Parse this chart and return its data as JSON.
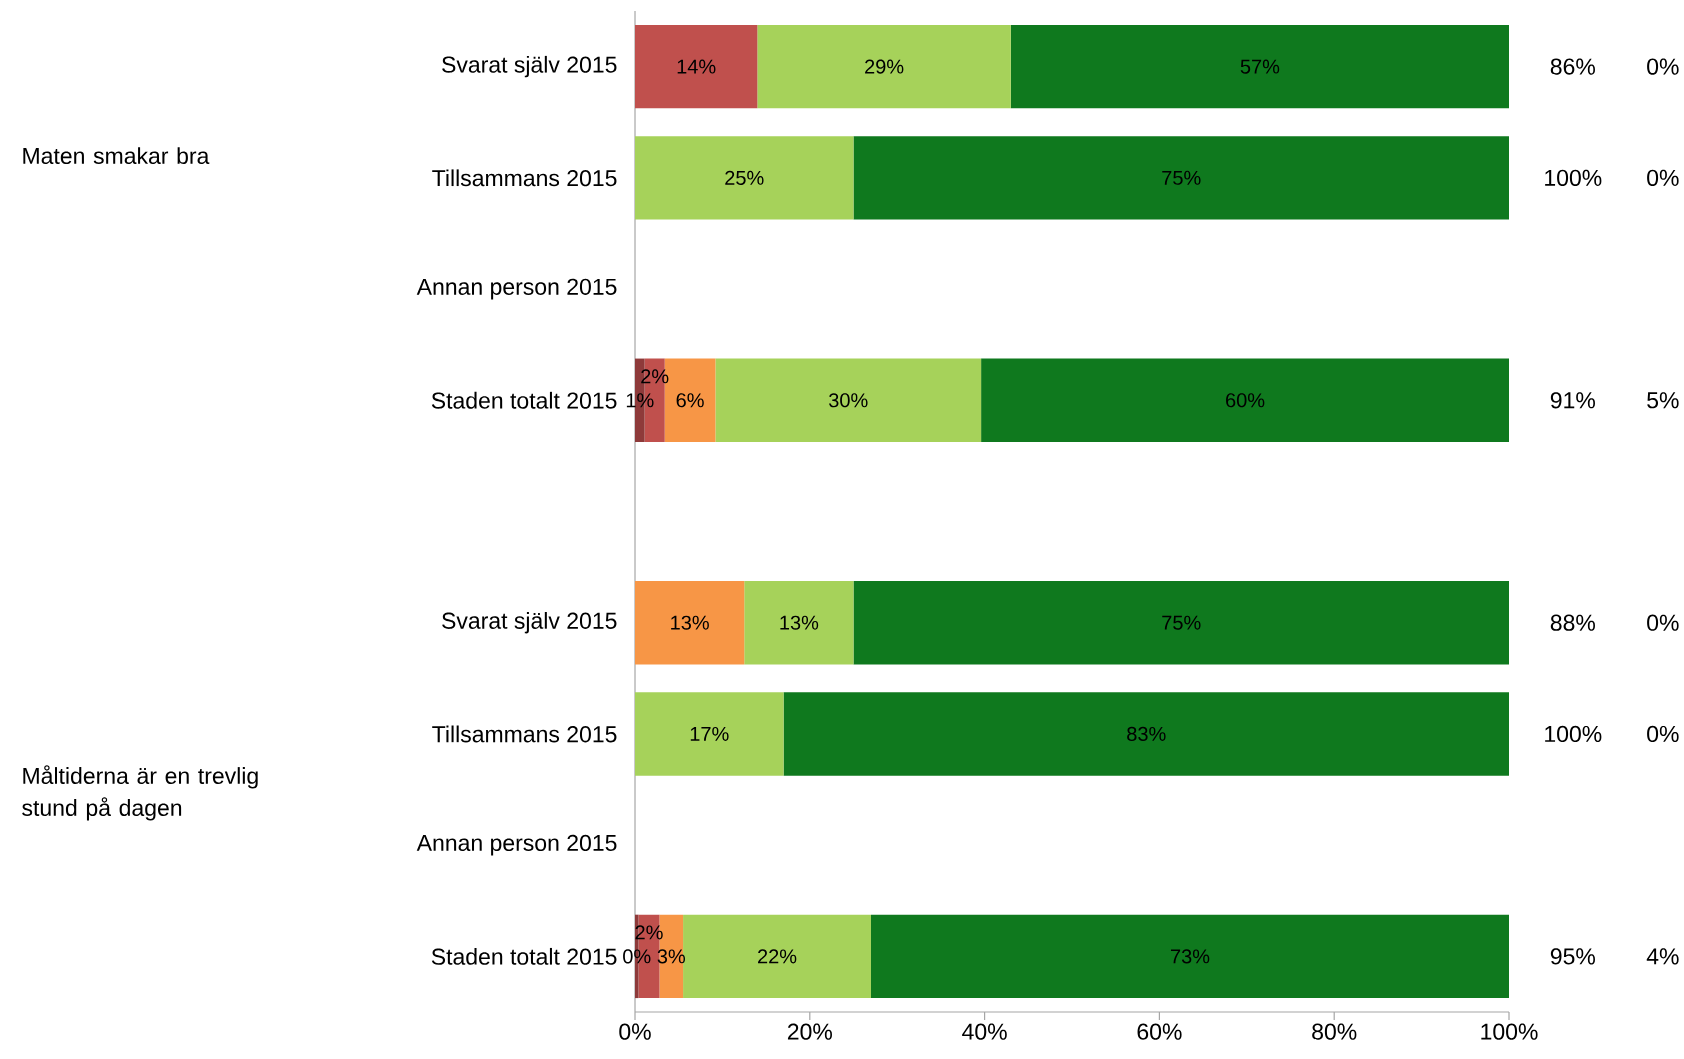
{
  "chart_data": {
    "type": "bar",
    "orientation": "horizontal",
    "stacked": true,
    "categories": [
      "Svarat själv 2015",
      "Tillsammans 2015",
      "Annan person 2015",
      "Staden totalt 2015",
      null,
      "Svarat själv 2015",
      "Tillsammans 2015",
      "Annan person 2015",
      "Staden totalt 2015"
    ],
    "series": [
      {
        "color": "#8e3a3a",
        "values": [
          0,
          0,
          null,
          1.1,
          null,
          0,
          0,
          null,
          0.4
        ],
        "value_labels": [
          null,
          null,
          null,
          "1%",
          null,
          null,
          null,
          null,
          "0%"
        ]
      },
      {
        "color": "#c0504d",
        "values": [
          14,
          0,
          null,
          2.3,
          null,
          0,
          0,
          null,
          2.4
        ],
        "value_labels": [
          "14%",
          null,
          null,
          "2%",
          null,
          null,
          null,
          null,
          "2%"
        ]
      },
      {
        "color": "#f79646",
        "values": [
          0,
          0,
          null,
          5.8,
          null,
          12.5,
          0,
          null,
          2.7
        ],
        "value_labels": [
          null,
          null,
          null,
          "6%",
          null,
          "13%",
          null,
          null,
          "3%"
        ]
      },
      {
        "color": "#a6d25a",
        "values": [
          29,
          25,
          null,
          30.4,
          null,
          12.5,
          17,
          null,
          21.5
        ],
        "value_labels": [
          "29%",
          "25%",
          null,
          "30%",
          null,
          "13%",
          "17%",
          null,
          "22%"
        ]
      },
      {
        "color": "#0f791e",
        "values": [
          57,
          75,
          null,
          60.4,
          null,
          75,
          83,
          null,
          73
        ],
        "value_labels": [
          "57%",
          "75%",
          null,
          "60%",
          null,
          "75%",
          "83%",
          null,
          "73%"
        ]
      }
    ],
    "xlim": [
      0,
      100
    ],
    "xticks": [
      {
        "value": 0,
        "label": "0%"
      },
      {
        "value": 20,
        "label": "20%"
      },
      {
        "value": 40,
        "label": "40%"
      },
      {
        "value": 60,
        "label": "60%"
      },
      {
        "value": 80,
        "label": "80%"
      },
      {
        "value": 100,
        "label": "100%"
      }
    ],
    "annotations": [
      "Maten smakar bra",
      "Måltiderna är en trevlig stund på dagen",
      "86%",
      "0%",
      "100%",
      "0%",
      "91%",
      "5%",
      "88%",
      "0%",
      "100%",
      "0%",
      "95%",
      "4%"
    ],
    "grid": false
  }
}
